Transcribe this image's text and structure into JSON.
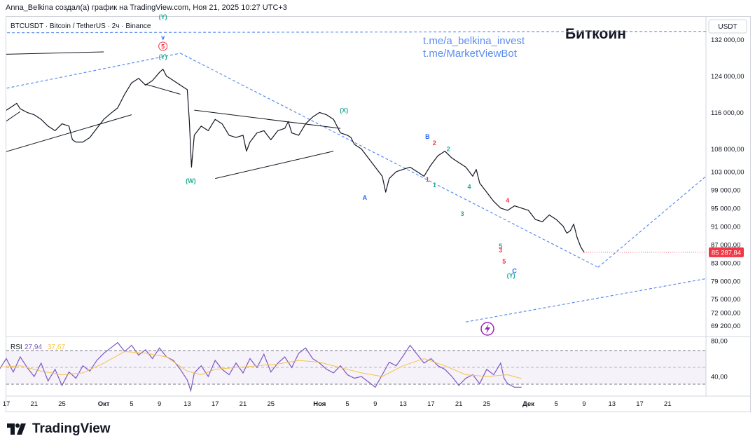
{
  "attribution": "Anna_Belkina создал(а) график на TradingView.com, Ноя 21, 2025 10:27 UTC+3",
  "brand": "TradingView",
  "chart_data": {
    "type": "line",
    "symbol": "BTCUSDT · Bitcoin / TetherUS · 2ч · Binance",
    "currency": "USDT",
    "headline": "Биткоин",
    "links": [
      "t.me/a_belkina_invest",
      "t.me/MarketViewBot"
    ],
    "last_price": "85 287,84",
    "colors": {
      "price": "#131722",
      "trend": "#5b8def",
      "rsi": "#7e57c2",
      "rsi_ma": "#f5c542",
      "last_price": "#f23645",
      "wave_green": "#22ab94",
      "wave_red": "#f23645",
      "wave_blue": "#2962ff"
    },
    "price_axis": {
      "ylim": [
        66800,
        137000
      ],
      "ticks": [
        {
          "v": 132000,
          "l": "132 000,00"
        },
        {
          "v": 124000,
          "l": "124 000,00"
        },
        {
          "v": 116000,
          "l": "116 000,00"
        },
        {
          "v": 108000,
          "l": "108 000,00"
        },
        {
          "v": 103000,
          "l": "103 000,00"
        },
        {
          "v": 99000,
          "l": "99 000,00"
        },
        {
          "v": 95000,
          "l": "95 000,00"
        },
        {
          "v": 91000,
          "l": "91 000,00"
        },
        {
          "v": 87000,
          "l": "87 000,00"
        },
        {
          "v": 83000,
          "l": "83 000,00"
        },
        {
          "v": 79000,
          "l": "79 000,00"
        },
        {
          "v": 75000,
          "l": "75 000,00"
        },
        {
          "v": 72000,
          "l": "72 000,00"
        },
        {
          "v": 69200,
          "l": "69 200,00"
        }
      ]
    },
    "time_axis": {
      "xlim": [
        0,
        100.5
      ],
      "ticks": [
        {
          "t": 0,
          "l": "17"
        },
        {
          "t": 4,
          "l": "21"
        },
        {
          "t": 8,
          "l": "25"
        },
        {
          "t": 14,
          "l": "Окт"
        },
        {
          "t": 18,
          "l": "5"
        },
        {
          "t": 22,
          "l": "9"
        },
        {
          "t": 26,
          "l": "13"
        },
        {
          "t": 30,
          "l": "17"
        },
        {
          "t": 34,
          "l": "21"
        },
        {
          "t": 38,
          "l": "25"
        },
        {
          "t": 45,
          "l": "Ноя"
        },
        {
          "t": 49,
          "l": "5"
        },
        {
          "t": 53,
          "l": "9"
        },
        {
          "t": 57,
          "l": "13"
        },
        {
          "t": 61,
          "l": "17"
        },
        {
          "t": 65,
          "l": "21"
        },
        {
          "t": 69,
          "l": "25"
        },
        {
          "t": 75,
          "l": "Дек"
        },
        {
          "t": 79,
          "l": "5"
        },
        {
          "t": 83,
          "l": "9"
        },
        {
          "t": 87,
          "l": "13"
        },
        {
          "t": 91,
          "l": "17"
        },
        {
          "t": 95,
          "l": "21"
        }
      ]
    },
    "price_series": [
      [
        -2,
        114000
      ],
      [
        -1,
        115500
      ],
      [
        0,
        116500
      ],
      [
        1,
        117500
      ],
      [
        1.5,
        118000
      ],
      [
        2,
        116800
      ],
      [
        3,
        116000
      ],
      [
        4,
        115500
      ],
      [
        5,
        114500
      ],
      [
        6,
        113000
      ],
      [
        7,
        112000
      ],
      [
        8,
        113500
      ],
      [
        9,
        113000
      ],
      [
        9.5,
        110000
      ],
      [
        10,
        109500
      ],
      [
        11,
        109500
      ],
      [
        12,
        110500
      ],
      [
        13,
        112500
      ],
      [
        14,
        114500
      ],
      [
        15,
        115800
      ],
      [
        16,
        117000
      ],
      [
        17,
        120000
      ],
      [
        18,
        122500
      ],
      [
        19,
        123500
      ],
      [
        20,
        122000
      ],
      [
        21,
        123000
      ],
      [
        22,
        124800
      ],
      [
        22.5,
        125500
      ],
      [
        23,
        124000
      ],
      [
        24,
        123000
      ],
      [
        25,
        122000
      ],
      [
        25.5,
        121500
      ],
      [
        26,
        121000
      ],
      [
        26.3,
        114000
      ],
      [
        26.6,
        104000
      ],
      [
        27,
        111000
      ],
      [
        28,
        113000
      ],
      [
        29,
        112000
      ],
      [
        30,
        114500
      ],
      [
        31,
        113500
      ],
      [
        32,
        111000
      ],
      [
        33,
        110500
      ],
      [
        34,
        111000
      ],
      [
        34.5,
        107500
      ],
      [
        35,
        109500
      ],
      [
        36,
        111500
      ],
      [
        37,
        112000
      ],
      [
        38,
        110000
      ],
      [
        39,
        112000
      ],
      [
        40,
        112500
      ],
      [
        40.5,
        114000
      ],
      [
        41,
        111500
      ],
      [
        42,
        111000
      ],
      [
        43,
        113500
      ],
      [
        44,
        115000
      ],
      [
        45,
        116000
      ],
      [
        46,
        115500
      ],
      [
        47,
        114500
      ],
      [
        48,
        111500
      ],
      [
        49,
        111000
      ],
      [
        49.5,
        110500
      ],
      [
        50,
        109000
      ],
      [
        51,
        108000
      ],
      [
        52,
        106000
      ],
      [
        53,
        104000
      ],
      [
        54,
        102000
      ],
      [
        54.5,
        98500
      ],
      [
        55,
        101500
      ],
      [
        56,
        103000
      ],
      [
        57,
        103500
      ],
      [
        58,
        104000
      ],
      [
        59,
        103000
      ],
      [
        60,
        102000
      ],
      [
        61,
        104500
      ],
      [
        62,
        106500
      ],
      [
        63,
        107500
      ],
      [
        64,
        106000
      ],
      [
        65,
        105000
      ],
      [
        66,
        104000
      ],
      [
        67,
        102000
      ],
      [
        67.5,
        103500
      ],
      [
        68,
        100500
      ],
      [
        69,
        98500
      ],
      [
        70,
        96500
      ],
      [
        71,
        95000
      ],
      [
        72,
        94500
      ],
      [
        73,
        95500
      ],
      [
        74,
        95000
      ],
      [
        75,
        94500
      ],
      [
        76,
        92500
      ],
      [
        77,
        92000
      ],
      [
        78,
        93500
      ],
      [
        79,
        92500
      ],
      [
        80,
        91000
      ],
      [
        80.5,
        89500
      ],
      [
        81,
        90000
      ],
      [
        81.5,
        91500
      ],
      [
        82,
        88500
      ],
      [
        82.5,
        86500
      ],
      [
        83,
        85287.84
      ]
    ],
    "trend_lines": [
      {
        "style": "solid",
        "points": [
          [
            -2,
            128700
          ],
          [
            14,
            129300
          ]
        ]
      },
      {
        "style": "solid",
        "points": [
          [
            -2,
            112000
          ],
          [
            2,
            116200
          ]
        ]
      },
      {
        "style": "solid",
        "points": [
          [
            -2,
            106500
          ],
          [
            18,
            115500
          ]
        ]
      },
      {
        "style": "solid",
        "points": [
          [
            20,
            122200
          ],
          [
            25,
            120000
          ]
        ]
      },
      {
        "style": "solid",
        "points": [
          [
            27,
            116500
          ],
          [
            48,
            112500
          ]
        ]
      },
      {
        "style": "solid",
        "points": [
          [
            30,
            101500
          ],
          [
            47,
            107500
          ]
        ]
      },
      {
        "style": "dashed",
        "points": [
          [
            -2,
            133500
          ],
          [
            100.5,
            133800
          ]
        ]
      },
      {
        "style": "dashed",
        "points": [
          [
            -2,
            120700
          ],
          [
            25,
            129000
          ]
        ]
      },
      {
        "style": "dashed",
        "points": [
          [
            25,
            129000
          ],
          [
            85,
            82000
          ]
        ]
      },
      {
        "style": "dashed",
        "points": [
          [
            85,
            82000
          ],
          [
            100.5,
            102000
          ]
        ]
      },
      {
        "style": "dashed",
        "points": [
          [
            66,
            70000
          ],
          [
            100.5,
            79500
          ]
        ]
      }
    ],
    "wave_labels": [
      {
        "t": 22.5,
        "p": 136500,
        "text": "(Y)",
        "color": "green"
      },
      {
        "t": 22.5,
        "p": 132000,
        "text": "v",
        "color": "blue"
      },
      {
        "t": 22.5,
        "p": 130000,
        "text": "5",
        "color": "red",
        "circled": true
      },
      {
        "t": 22.5,
        "p": 127800,
        "text": "(Y)",
        "color": "green"
      },
      {
        "t": 26.5,
        "p": 100500,
        "text": "(W)",
        "color": "green"
      },
      {
        "t": 48.5,
        "p": 116000,
        "text": "(X)",
        "color": "green"
      },
      {
        "t": 51.5,
        "p": 96800,
        "text": "A",
        "color": "blue"
      },
      {
        "t": 60.5,
        "p": 110200,
        "text": "B",
        "color": "blue"
      },
      {
        "t": 61.5,
        "p": 108800,
        "text": "2",
        "color": "red"
      },
      {
        "t": 63.5,
        "p": 107500,
        "text": "2",
        "color": "green"
      },
      {
        "t": 60.5,
        "p": 100800,
        "text": "1",
        "color": "red"
      },
      {
        "t": 61.5,
        "p": 99600,
        "text": "1",
        "color": "green"
      },
      {
        "t": 66.5,
        "p": 99200,
        "text": "4",
        "color": "green"
      },
      {
        "t": 65.5,
        "p": 93300,
        "text": "3",
        "color": "green"
      },
      {
        "t": 72,
        "p": 96200,
        "text": "4",
        "color": "red"
      },
      {
        "t": 71,
        "p": 86200,
        "text": "5",
        "color": "green"
      },
      {
        "t": 71,
        "p": 85300,
        "text": "3",
        "color": "red"
      },
      {
        "t": 71.5,
        "p": 82800,
        "text": "5",
        "color": "red"
      },
      {
        "t": 73,
        "p": 80700,
        "text": "C",
        "color": "blue"
      },
      {
        "t": 72.5,
        "p": 79700,
        "text": "(Y)",
        "color": "green"
      }
    ],
    "rsi": {
      "label": "RSI",
      "value": "27,94",
      "ma_value": "37,67",
      "axis": {
        "ylim": [
          18,
          84
        ],
        "ticks": [
          {
            "v": 80,
            "l": "80,00"
          },
          {
            "v": 40,
            "l": "40,00"
          }
        ]
      },
      "band": [
        30,
        70
      ],
      "mid": 50,
      "series": [
        [
          -2,
          52
        ],
        [
          -1,
          48
        ],
        [
          0,
          60
        ],
        [
          1,
          45
        ],
        [
          2,
          62
        ],
        [
          3,
          50
        ],
        [
          4,
          40
        ],
        [
          5,
          55
        ],
        [
          6,
          35
        ],
        [
          7,
          48
        ],
        [
          8,
          30
        ],
        [
          9,
          45
        ],
        [
          10,
          38
        ],
        [
          11,
          52
        ],
        [
          12,
          46
        ],
        [
          13,
          58
        ],
        [
          14,
          66
        ],
        [
          15,
          72
        ],
        [
          16,
          78
        ],
        [
          17,
          68
        ],
        [
          18,
          75
        ],
        [
          19,
          64
        ],
        [
          20,
          70
        ],
        [
          21,
          60
        ],
        [
          22,
          72
        ],
        [
          23,
          62
        ],
        [
          24,
          58
        ],
        [
          25,
          48
        ],
        [
          26,
          36
        ],
        [
          26.5,
          24
        ],
        [
          27,
          44
        ],
        [
          28,
          52
        ],
        [
          29,
          40
        ],
        [
          30,
          58
        ],
        [
          31,
          48
        ],
        [
          32,
          42
        ],
        [
          33,
          55
        ],
        [
          34,
          44
        ],
        [
          35,
          60
        ],
        [
          36,
          50
        ],
        [
          37,
          65
        ],
        [
          38,
          45
        ],
        [
          39,
          55
        ],
        [
          40,
          62
        ],
        [
          41,
          50
        ],
        [
          42,
          66
        ],
        [
          43,
          72
        ],
        [
          44,
          60
        ],
        [
          45,
          55
        ],
        [
          46,
          48
        ],
        [
          47,
          44
        ],
        [
          48,
          52
        ],
        [
          49,
          42
        ],
        [
          50,
          38
        ],
        [
          51,
          40
        ],
        [
          52,
          34
        ],
        [
          53,
          28
        ],
        [
          54,
          42
        ],
        [
          55,
          56
        ],
        [
          56,
          52
        ],
        [
          57,
          63
        ],
        [
          58,
          75
        ],
        [
          59,
          65
        ],
        [
          60,
          55
        ],
        [
          61,
          60
        ],
        [
          62,
          52
        ],
        [
          63,
          48
        ],
        [
          64,
          40
        ],
        [
          65,
          30
        ],
        [
          66,
          38
        ],
        [
          67,
          42
        ],
        [
          68,
          32
        ],
        [
          69,
          48
        ],
        [
          70,
          42
        ],
        [
          71,
          55
        ],
        [
          71.5,
          38
        ],
        [
          72,
          32
        ],
        [
          73,
          28
        ],
        [
          74,
          27.94
        ]
      ],
      "ma_series": [
        [
          -2,
          50
        ],
        [
          2,
          52
        ],
        [
          5,
          46
        ],
        [
          8,
          42
        ],
        [
          11,
          44
        ],
        [
          14,
          55
        ],
        [
          17,
          68
        ],
        [
          20,
          66
        ],
        [
          23,
          62
        ],
        [
          26,
          46
        ],
        [
          28,
          42
        ],
        [
          30,
          48
        ],
        [
          33,
          50
        ],
        [
          36,
          52
        ],
        [
          39,
          54
        ],
        [
          42,
          58
        ],
        [
          45,
          56
        ],
        [
          48,
          50
        ],
        [
          51,
          44
        ],
        [
          54,
          40
        ],
        [
          57,
          52
        ],
        [
          60,
          60
        ],
        [
          63,
          52
        ],
        [
          66,
          42
        ],
        [
          69,
          40
        ],
        [
          72,
          42
        ],
        [
          74,
          37.67
        ]
      ]
    }
  }
}
